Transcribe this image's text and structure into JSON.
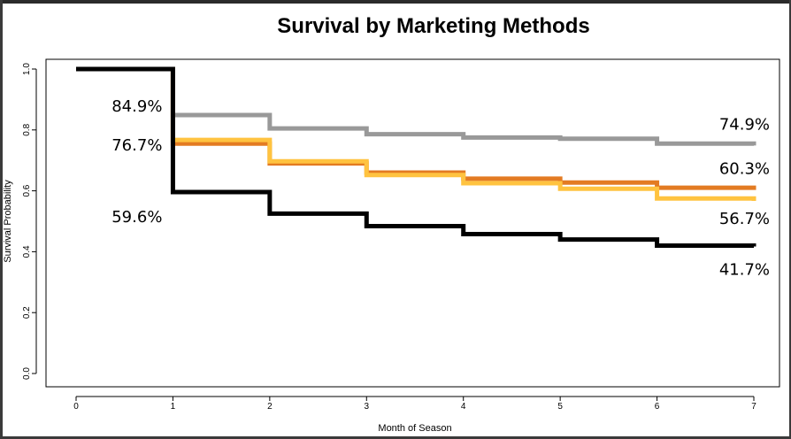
{
  "chart_data": {
    "type": "line",
    "step": true,
    "title": "Survival by Marketing Methods",
    "xlabel": "Month of Season",
    "ylabel": "Survival Probability",
    "xlim": [
      0,
      7
    ],
    "ylim": [
      0,
      1
    ],
    "x_ticks": [
      "0",
      "1",
      "2",
      "3",
      "4",
      "5",
      "6",
      "7"
    ],
    "y_ticks": [
      "0.0",
      "0.2",
      "0.4",
      "0.6",
      "0.8",
      "1.0"
    ],
    "x": [
      0,
      1,
      2,
      3,
      4,
      5,
      6,
      7
    ],
    "series": [
      {
        "color": "#999999",
        "values": [
          1.0,
          0.849,
          0.805,
          0.786,
          0.775,
          0.771,
          0.755,
          0.749
        ]
      },
      {
        "color": "#e37b22",
        "values": [
          1.0,
          0.755,
          0.69,
          0.66,
          0.64,
          0.627,
          0.61,
          0.603
        ]
      },
      {
        "color": "#ffc340",
        "values": [
          1.0,
          0.767,
          0.697,
          0.652,
          0.625,
          0.607,
          0.575,
          0.567
        ]
      },
      {
        "color": "#000000",
        "values": [
          1.0,
          0.596,
          0.525,
          0.484,
          0.458,
          0.44,
          0.42,
          0.417
        ]
      }
    ],
    "annotations": [
      {
        "text": "84.9%",
        "x": 1,
        "y": 0.849,
        "side": "left"
      },
      {
        "text": "76.7%",
        "x": 1,
        "y": 0.767,
        "side": "left"
      },
      {
        "text": "59.6%",
        "x": 1,
        "y": 0.596,
        "side": "left"
      },
      {
        "text": "74.9%",
        "x": 7,
        "y": 0.749,
        "side": "right"
      },
      {
        "text": "60.3%",
        "x": 7,
        "y": 0.603,
        "side": "right"
      },
      {
        "text": "56.7%",
        "x": 7,
        "y": 0.567,
        "side": "right"
      },
      {
        "text": "41.7%",
        "x": 7,
        "y": 0.417,
        "side": "right"
      }
    ],
    "grid": false,
    "legend": "none"
  }
}
